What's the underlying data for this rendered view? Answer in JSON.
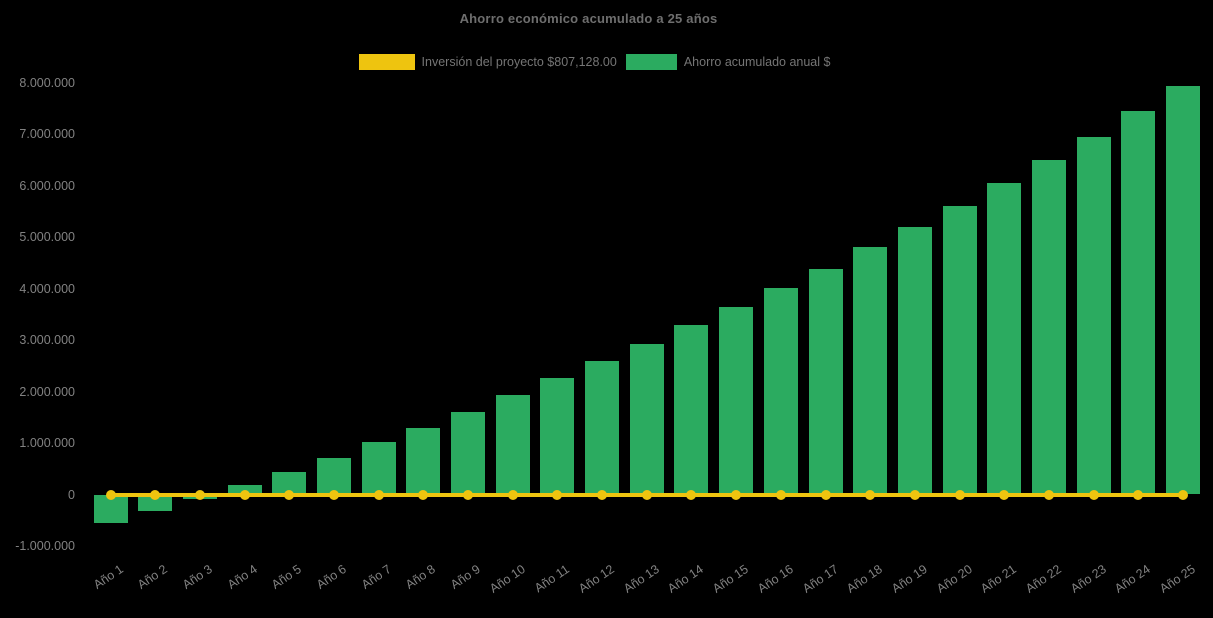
{
  "title": "Ahorro económico acumulado a 25 años",
  "colors": {
    "background": "#000000",
    "bar_green": "#2BAB60",
    "line_yellow": "#EEC40F",
    "title_text": "#6E6E6E",
    "legend_text": "#757575",
    "tick_text": "#828282"
  },
  "legend": [
    {
      "label": "Inversión del proyecto $807,128.00",
      "color": "#EEC40F",
      "swatch_width": 56
    },
    {
      "label": "Ahorro acumulado anual $",
      "color": "#2BAB60",
      "swatch_width": 51
    }
  ],
  "chart_data": {
    "type": "bar",
    "title": "Ahorro económico acumulado a 25 años",
    "xlabel": "",
    "ylabel": "",
    "legend_position": "top-center",
    "grid": false,
    "background": "#000000",
    "ylim": [
      -1000000,
      8000000
    ],
    "categories": [
      "Año 1",
      "Año 2",
      "Año 3",
      "Año 4",
      "Año 5",
      "Año 6",
      "Año 7",
      "Año 8",
      "Año 9",
      "Año 10",
      "Año 11",
      "Año 12",
      "Año 13",
      "Año 14",
      "Año 15",
      "Año 16",
      "Año 17",
      "Año 18",
      "Año 19",
      "Año 20",
      "Año 21",
      "Año 22",
      "Año 23",
      "Año 24",
      "Año 25"
    ],
    "yticks": [
      {
        "value": 8000000,
        "label": "8.000.000"
      },
      {
        "value": 7000000,
        "label": "7.000.000"
      },
      {
        "value": 6000000,
        "label": "6.000.000"
      },
      {
        "value": 5000000,
        "label": "5.000.000"
      },
      {
        "value": 4000000,
        "label": "4.000.000"
      },
      {
        "value": 3000000,
        "label": "3.000.000"
      },
      {
        "value": 2000000,
        "label": "2.000.000"
      },
      {
        "value": 1000000,
        "label": "1.000.000"
      },
      {
        "value": 0,
        "label": "0"
      },
      {
        "value": -1000000,
        "label": "-1.000.000"
      }
    ],
    "series": [
      {
        "name": "Ahorro acumulado anual $",
        "type": "bar",
        "color": "#2BAB60",
        "values": [
          -560000,
          -330000,
          -80000,
          190000,
          440000,
          710000,
          1030000,
          1300000,
          1610000,
          1930000,
          2260000,
          2590000,
          2920000,
          3290000,
          3640000,
          4020000,
          4390000,
          4810000,
          5200000,
          5600000,
          6060000,
          6510000,
          6950000,
          7450000,
          7940000
        ]
      },
      {
        "name": "Inversión del proyecto $807,128.00",
        "type": "line",
        "color": "#EEC40F",
        "marker": "circle",
        "plotted_value_constant": 0
      }
    ]
  }
}
